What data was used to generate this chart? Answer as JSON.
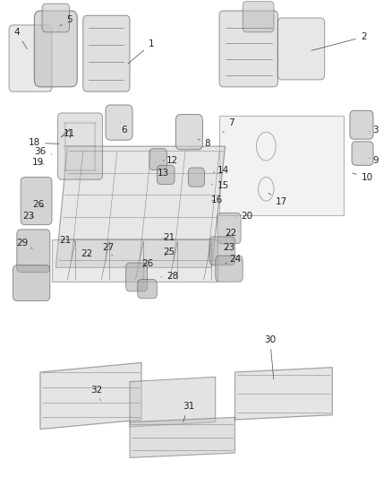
{
  "background_color": "#ffffff",
  "fig_width": 4.38,
  "fig_height": 5.33,
  "dpi": 100,
  "label_fontsize": 7.5,
  "label_color": "#222222",
  "line_color": "#444444",
  "line_width": 0.5,
  "label_positions": {
    "1a": [
      0.385,
      0.91,
      0.32,
      0.865
    ],
    "2": [
      0.93,
      0.925,
      0.79,
      0.895
    ],
    "3": [
      0.96,
      0.73,
      0.945,
      0.725
    ],
    "4": [
      0.04,
      0.935,
      0.07,
      0.895
    ],
    "5": [
      0.175,
      0.962,
      0.145,
      0.945
    ],
    "6": [
      0.315,
      0.73,
      0.305,
      0.745
    ],
    "7": [
      0.59,
      0.745,
      0.565,
      0.72
    ],
    "8": [
      0.53,
      0.7,
      0.505,
      0.71
    ],
    "9": [
      0.96,
      0.665,
      0.945,
      0.67
    ],
    "10": [
      0.94,
      0.63,
      0.895,
      0.64
    ],
    "11": [
      0.175,
      0.722,
      0.175,
      0.715
    ],
    "12": [
      0.44,
      0.665,
      0.415,
      0.665
    ],
    "13": [
      0.415,
      0.638,
      0.405,
      0.645
    ],
    "14": [
      0.57,
      0.645,
      0.545,
      0.64
    ],
    "15": [
      0.57,
      0.612,
      0.54,
      0.615
    ],
    "16": [
      0.555,
      0.582,
      0.535,
      0.58
    ],
    "17": [
      0.72,
      0.578,
      0.68,
      0.6
    ],
    "18": [
      0.085,
      0.702,
      0.155,
      0.7
    ],
    "19": [
      0.095,
      0.662,
      0.115,
      0.655
    ],
    "20": [
      0.63,
      0.548,
      0.595,
      0.545
    ],
    "21a": [
      0.43,
      0.503,
      0.41,
      0.5
    ],
    "21b": [
      0.165,
      0.498,
      0.19,
      0.495
    ],
    "22a": [
      0.59,
      0.513,
      0.575,
      0.505
    ],
    "22b": [
      0.22,
      0.468,
      0.235,
      0.462
    ],
    "23a": [
      0.07,
      0.548,
      0.09,
      0.545
    ],
    "23b": [
      0.585,
      0.482,
      0.57,
      0.476
    ],
    "24": [
      0.6,
      0.458,
      0.575,
      0.448
    ],
    "25": [
      0.43,
      0.472,
      0.415,
      0.462
    ],
    "26a": [
      0.095,
      0.573,
      0.115,
      0.565
    ],
    "26b": [
      0.375,
      0.448,
      0.36,
      0.438
    ],
    "27": [
      0.275,
      0.482,
      0.285,
      0.465
    ],
    "28": [
      0.44,
      0.422,
      0.41,
      0.42
    ],
    "29": [
      0.055,
      0.492,
      0.08,
      0.48
    ],
    "30": [
      0.69,
      0.288,
      0.7,
      0.2
    ],
    "31": [
      0.48,
      0.148,
      0.465,
      0.11
    ],
    "32": [
      0.245,
      0.183,
      0.255,
      0.16
    ],
    "36": [
      0.1,
      0.683,
      0.13,
      0.678
    ]
  },
  "label_text": {
    "1a": "1",
    "2": "2",
    "3": "3",
    "4": "4",
    "5": "5",
    "6": "6",
    "7": "7",
    "8": "8",
    "9": "9",
    "10": "10",
    "11": "11",
    "12": "12",
    "13": "13",
    "14": "14",
    "15": "15",
    "16": "16",
    "17": "17",
    "18": "18",
    "19": "19",
    "20": "20",
    "21a": "21",
    "21b": "21",
    "22a": "22",
    "22b": "22",
    "23a": "23",
    "23b": "23",
    "24": "24",
    "25": "25",
    "26a": "26",
    "26b": "26",
    "27": "27",
    "28": "28",
    "29": "29",
    "30": "30",
    "31": "31",
    "32": "32",
    "36": "36"
  }
}
